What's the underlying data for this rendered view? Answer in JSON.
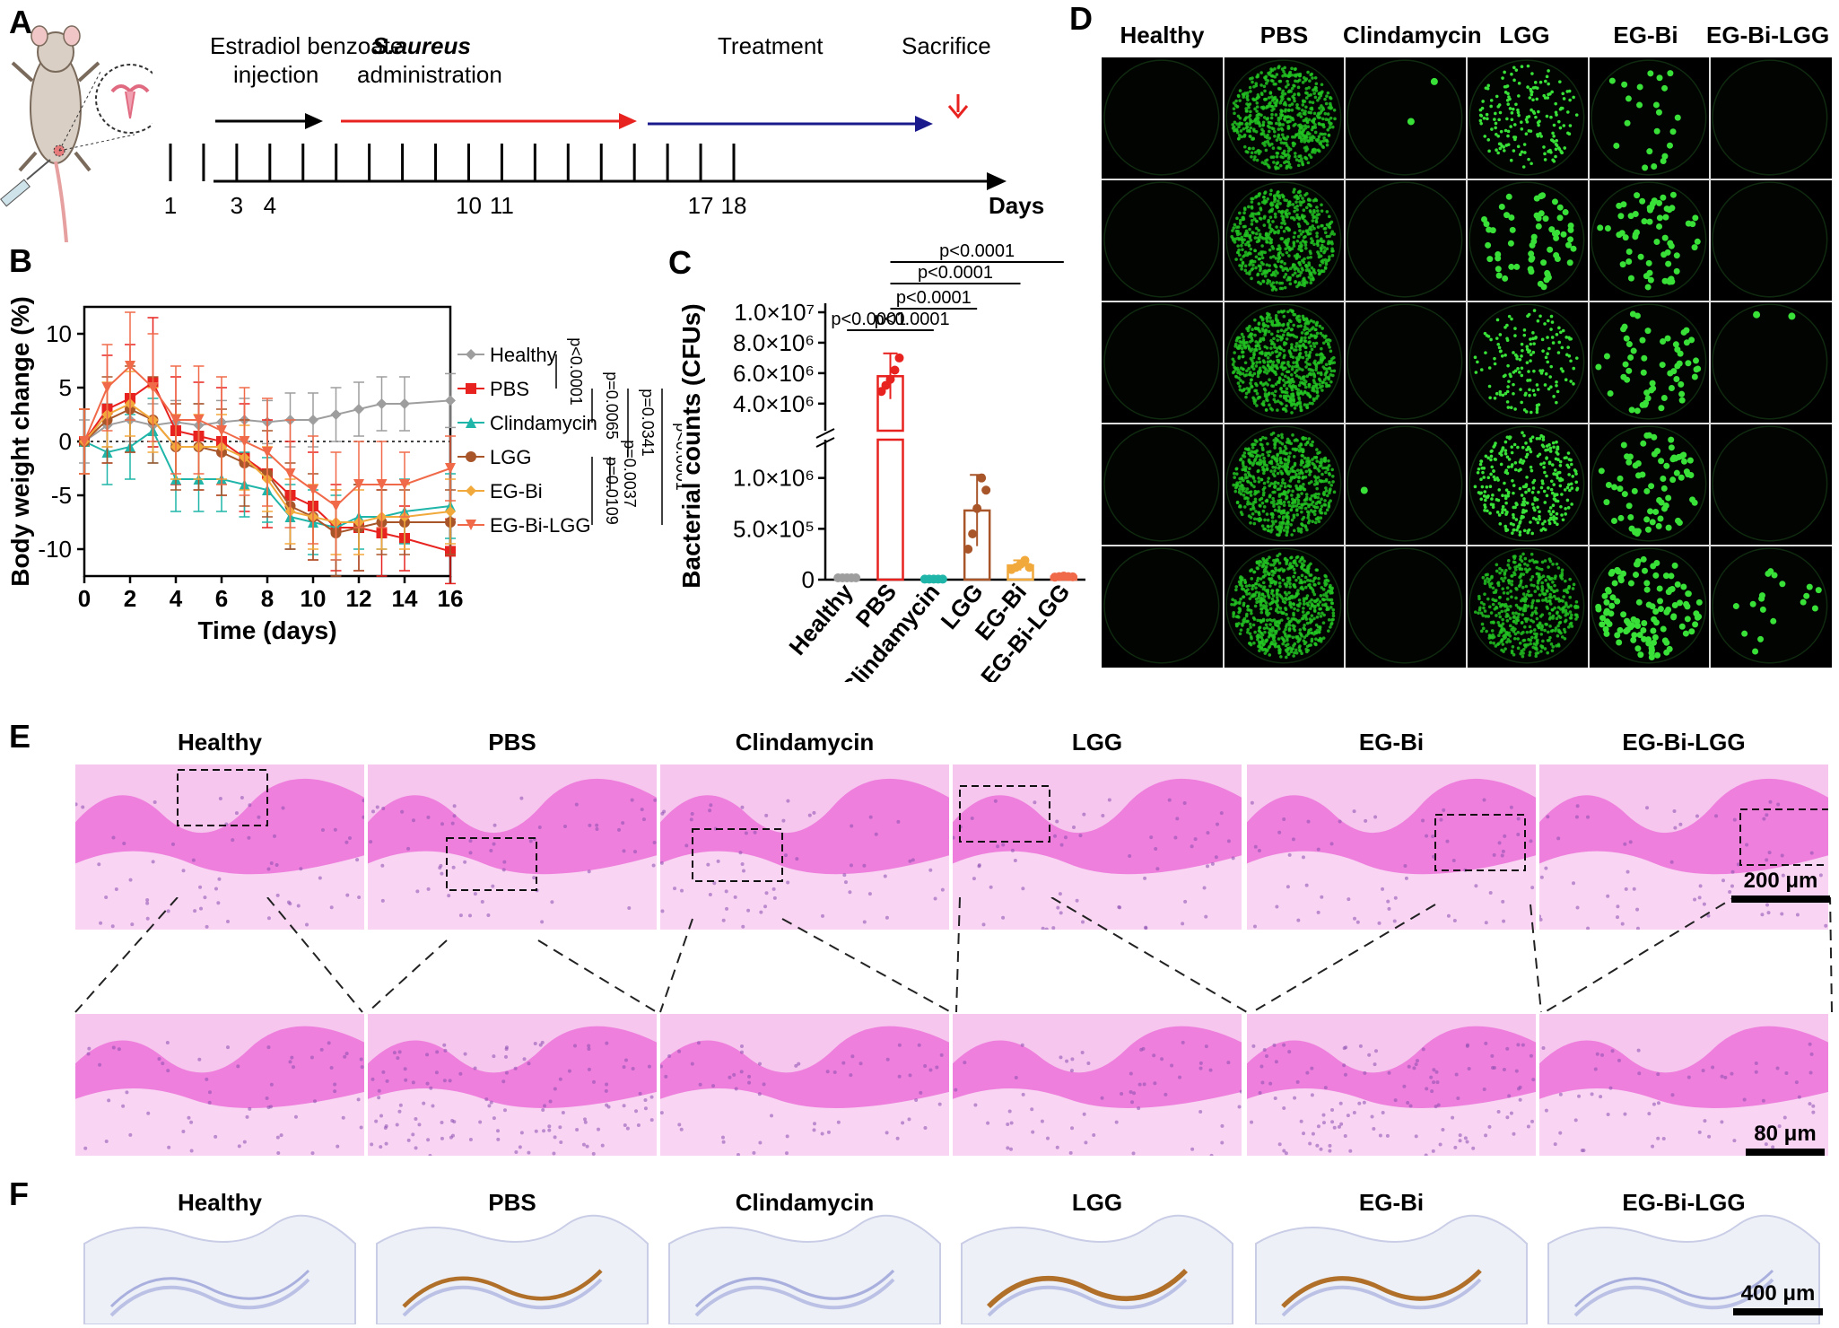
{
  "panels": {
    "A": "A",
    "B": "B",
    "C": "C",
    "D": "D",
    "E": "E",
    "F": "F"
  },
  "timeline": {
    "phases": [
      {
        "label_lines": [
          "Estradiol benzoate",
          "injection"
        ],
        "color": "#000000"
      },
      {
        "label_lines": [
          "S.aureus",
          "administration"
        ],
        "color": "#e8221f"
      },
      {
        "label_lines": [
          "Treatment"
        ],
        "color": "#1a1a8c"
      },
      {
        "label_lines": [
          "Sacrifice"
        ],
        "color": "#e8221f"
      }
    ],
    "ticks": [
      "1",
      "3",
      "4",
      "10",
      "11",
      "17",
      "18"
    ],
    "axis_label": "Days"
  },
  "groups": [
    "Healthy",
    "PBS",
    "Clindamycin",
    "LGG",
    "EG-Bi",
    "EG-Bi-LGG"
  ],
  "colors": {
    "Healthy": "#9e9e9e",
    "PBS": "#e8221f",
    "Clindamycin": "#1fb5a8",
    "LGG": "#a8552a",
    "EG-Bi": "#f2a93b",
    "EG-Bi-LGG": "#f06a4a"
  },
  "chart_data": [
    {
      "type": "line",
      "xlabel": "Time (days)",
      "ylabel": "Body weight change (%)",
      "xlim": [
        0,
        16
      ],
      "ylim": [
        -12.5,
        12.5
      ],
      "xticks": [
        0,
        2,
        4,
        6,
        8,
        10,
        12,
        14,
        16
      ],
      "yticks": [
        -10,
        -5,
        0,
        5,
        10
      ],
      "x": [
        0,
        1,
        2,
        3,
        4,
        5,
        6,
        7,
        8,
        9,
        10,
        11,
        12,
        13,
        14,
        16
      ],
      "series": [
        {
          "name": "Healthy",
          "values": [
            0,
            1.5,
            2,
            1.5,
            1.8,
            1.5,
            1.8,
            2,
            1.8,
            2,
            2,
            2.5,
            3,
            3.5,
            3.5,
            3.8
          ],
          "error": [
            2,
            2,
            2,
            2,
            2,
            2,
            2,
            2,
            2,
            2.5,
            2.5,
            2.5,
            2.5,
            2.5,
            2.5,
            2.5
          ]
        },
        {
          "name": "PBS",
          "values": [
            0,
            3,
            4,
            5.5,
            1,
            0.5,
            0,
            -1.5,
            -3,
            -5,
            -6,
            -8,
            -8,
            -8.5,
            -9,
            -10.2
          ],
          "error": [
            3,
            5,
            5,
            6,
            5,
            5,
            5,
            5,
            5,
            5,
            5,
            4,
            4,
            4,
            3,
            3
          ]
        },
        {
          "name": "Clindamycin",
          "values": [
            0,
            -1,
            -0.5,
            1,
            -3.5,
            -3.5,
            -3.5,
            -4,
            -4.5,
            -7,
            -7.5,
            -8,
            -7,
            -7,
            -6.5,
            -6
          ],
          "error": [
            3,
            3,
            3,
            3,
            3,
            3,
            3,
            3,
            3,
            3,
            3,
            3,
            3,
            3,
            3,
            3
          ]
        },
        {
          "name": "LGG",
          "values": [
            0,
            2,
            3,
            2,
            -0.5,
            -0.5,
            -1,
            -2,
            -3,
            -6,
            -7,
            -8.5,
            -8,
            -7.5,
            -7.5,
            -7.5
          ],
          "error": [
            3,
            4,
            4,
            4,
            4,
            4,
            4,
            4,
            4,
            4,
            4,
            4,
            4,
            3,
            3,
            3
          ]
        },
        {
          "name": "EG-Bi",
          "values": [
            0,
            2.5,
            3.5,
            2,
            -0.5,
            -0.5,
            -0.5,
            -1.5,
            -3.5,
            -6.5,
            -7,
            -7.5,
            -7.5,
            -7,
            -7,
            -6.5
          ],
          "error": [
            3,
            3,
            3,
            3,
            3,
            3,
            3,
            3,
            3,
            3,
            3,
            3,
            3,
            3,
            3,
            3
          ]
        },
        {
          "name": "EG-Bi-LGG",
          "values": [
            0,
            5,
            7,
            5,
            2,
            2,
            1,
            0,
            -1,
            -3,
            -4.5,
            -6,
            -4,
            -4,
            -4,
            -2.5
          ],
          "error": [
            3,
            4,
            5,
            5,
            5,
            5,
            5,
            5,
            5,
            5,
            5,
            5,
            4,
            4,
            3,
            3
          ]
        }
      ],
      "significance": [
        {
          "text": "p<0.0001",
          "pair": "Healthy vs PBS"
        },
        {
          "text": "p=0.0065",
          "pair": "PBS vs Clindamycin"
        },
        {
          "text": "p=0.0341",
          "pair": "PBS vs LGG"
        },
        {
          "text": "p<0.0001",
          "pair": "PBS vs EG-Bi-LGG"
        },
        {
          "text": "p=0.0037",
          "pair": "PBS vs EG-Bi"
        },
        {
          "text": "p=0.0109",
          "pair": "PBS vs EG-Bi-LGG"
        }
      ]
    },
    {
      "type": "bar",
      "ylabel": "Bacterial counts (CFUs)",
      "categories": [
        "Healthy",
        "PBS",
        "Clindamycin",
        "LGG",
        "EG-Bi",
        "EG-Bi-LGG"
      ],
      "values": [
        0,
        5800000,
        0,
        680000,
        140000,
        30000
      ],
      "error": [
        0,
        1500000,
        0,
        350000,
        50000,
        10000
      ],
      "points": [
        [
          0,
          0,
          0,
          0,
          0
        ],
        [
          4800000,
          5200000,
          5600000,
          6200000,
          7000000
        ],
        [
          5000,
          5000,
          5000,
          5000,
          5000
        ],
        [
          300000,
          450000,
          700000,
          1000000,
          880000
        ],
        [
          100000,
          120000,
          150000,
          190000,
          120000
        ],
        [
          25000,
          30000,
          35000,
          30000,
          28000
        ]
      ],
      "yticks_lower": [
        "0",
        "5.0×10⁵",
        "1.0×10⁶"
      ],
      "yticks_upper": [
        "4.0×10⁶",
        "6.0×10⁶",
        "8.0×10⁶",
        "1.0×10⁷"
      ],
      "significance": [
        {
          "text": "p<0.0001",
          "pair": "Healthy vs PBS"
        },
        {
          "text": "p<0.0001",
          "pair": "PBS vs Clindamycin"
        },
        {
          "text": "p<0.0001",
          "pair": "PBS vs LGG"
        },
        {
          "text": "p<0.0001",
          "pair": "PBS vs EG-Bi"
        },
        {
          "text": "p<0.0001",
          "pair": "PBS vs EG-Bi-LGG"
        }
      ]
    }
  ],
  "plates": {
    "colony_density": [
      [
        0,
        600,
        2,
        180,
        22,
        0
      ],
      [
        0,
        600,
        0,
        60,
        60,
        0
      ],
      [
        0,
        900,
        0,
        160,
        55,
        2
      ],
      [
        0,
        650,
        1,
        320,
        70,
        0
      ],
      [
        0,
        1000,
        0,
        500,
        110,
        18
      ]
    ]
  },
  "scalebars": {
    "E_top": "200 μm",
    "E_bottom": "80 μm",
    "F": "400 μm"
  }
}
